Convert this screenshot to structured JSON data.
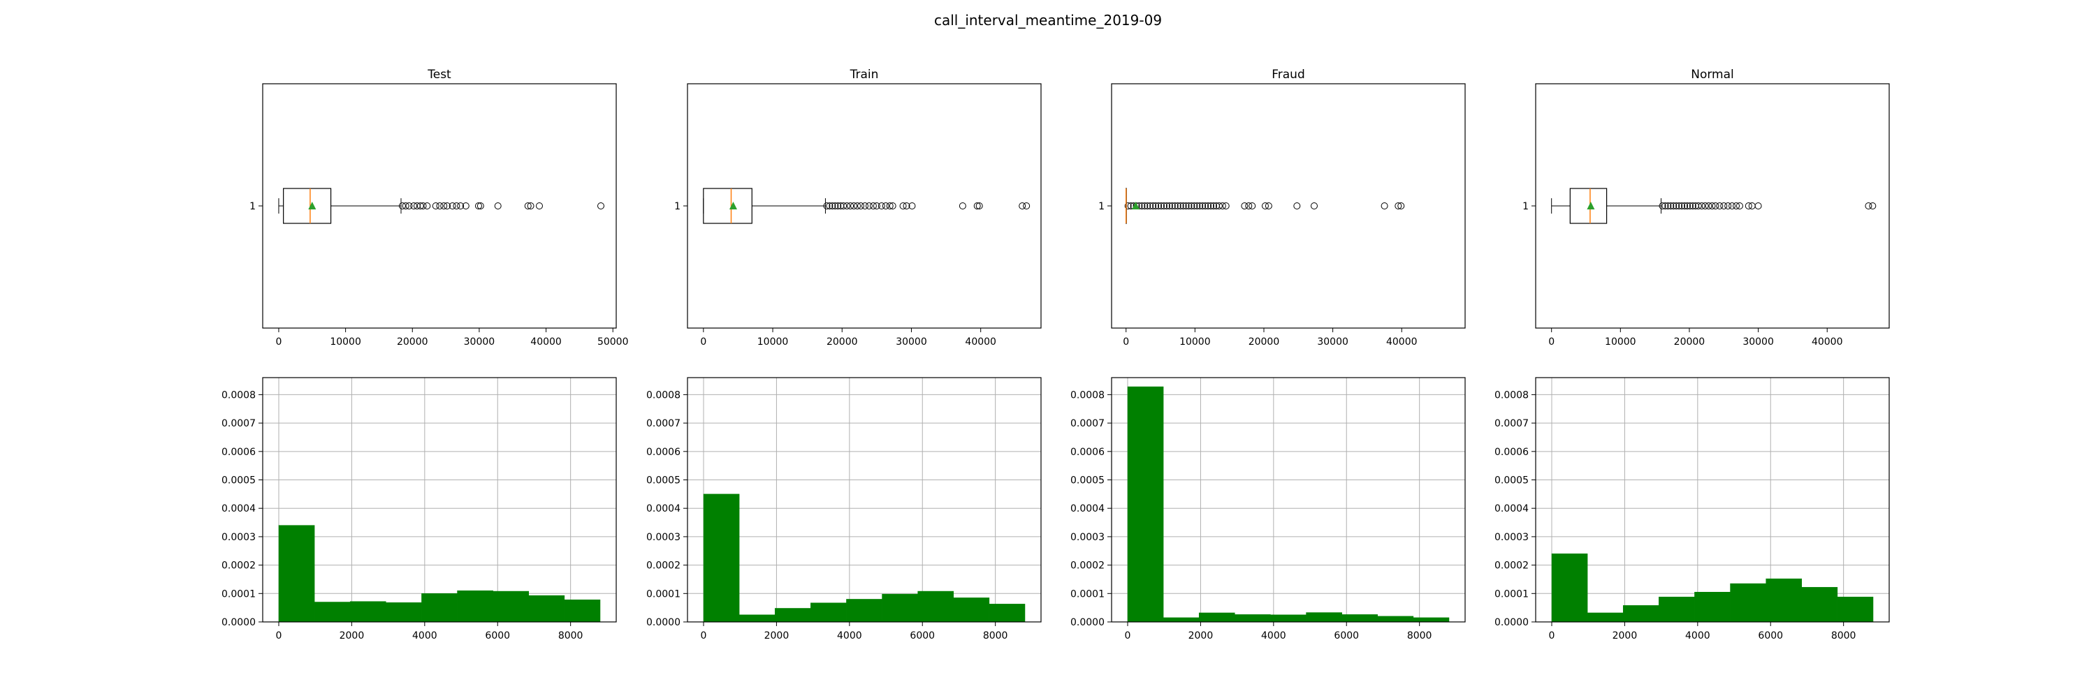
{
  "figure": {
    "title": "call_interval_meantime_2019-09"
  },
  "chart_data": [
    {
      "panel": "Test",
      "type": "boxplot",
      "title": "Test",
      "orientation": "horizontal",
      "y_tick_label": "1",
      "xlim": [
        -2400,
        50500
      ],
      "xticks": [
        0,
        10000,
        20000,
        30000,
        40000,
        50000
      ],
      "whisker_low": 0,
      "q1": 700,
      "median": 4700,
      "q3": 7800,
      "whisker_high": 18300,
      "mean": 5000,
      "outliers": [
        18500,
        19000,
        19500,
        20200,
        20700,
        21200,
        21600,
        22200,
        23500,
        24100,
        24700,
        25200,
        26000,
        26600,
        27200,
        28000,
        29900,
        30200,
        32800,
        37300,
        37700,
        39000,
        48200
      ]
    },
    {
      "panel": "Test",
      "type": "bar",
      "title": "",
      "bin_edges": [
        0,
        979,
        1958,
        2937,
        3916,
        4895,
        5874,
        6853,
        7832,
        8811
      ],
      "values": [
        0.00034,
        7e-05,
        7.2e-05,
        6.8e-05,
        0.0001,
        0.00011,
        0.000108,
        9.3e-05,
        7.8e-05
      ],
      "ylim": [
        0,
        0.00086
      ],
      "xticks": [
        0,
        2000,
        4000,
        6000,
        8000
      ],
      "yticks": [
        "0.0000",
        "0.0001",
        "0.0002",
        "0.0003",
        "0.0004",
        "0.0005",
        "0.0006",
        "0.0007",
        "0.0008"
      ],
      "grid": true,
      "color": "#008000"
    },
    {
      "panel": "Train",
      "type": "boxplot",
      "title": "Train",
      "orientation": "horizontal",
      "y_tick_label": "1",
      "xlim": [
        -2300,
        48700
      ],
      "xticks": [
        0,
        10000,
        20000,
        30000,
        40000
      ],
      "whisker_low": 0,
      "q1": 0,
      "median": 4000,
      "q3": 7000,
      "whisker_high": 17600,
      "mean": 4300,
      "outliers": [
        17800,
        18200,
        18600,
        19000,
        19400,
        19800,
        20200,
        20700,
        21200,
        21700,
        22200,
        22700,
        23300,
        23900,
        24500,
        25000,
        25700,
        26300,
        26900,
        27300,
        28800,
        29300,
        30100,
        37400,
        39500,
        39800,
        46000,
        46600
      ]
    },
    {
      "panel": "Train",
      "type": "bar",
      "title": "",
      "bin_edges": [
        0,
        979,
        1958,
        2937,
        3916,
        4895,
        5874,
        6853,
        7832,
        8811
      ],
      "values": [
        0.00045,
        2.5e-05,
        4.8e-05,
        6.7e-05,
        8e-05,
        9.8e-05,
        0.000108,
        8.5e-05,
        6.3e-05
      ],
      "ylim": [
        0,
        0.00086
      ],
      "xticks": [
        0,
        2000,
        4000,
        6000,
        8000
      ],
      "yticks": [
        "0.0000",
        "0.0001",
        "0.0002",
        "0.0003",
        "0.0004",
        "0.0005",
        "0.0006",
        "0.0007",
        "0.0008"
      ],
      "grid": true,
      "color": "#008000"
    },
    {
      "panel": "Fraud",
      "type": "boxplot",
      "title": "Fraud",
      "orientation": "horizontal",
      "y_tick_label": "1",
      "xlim": [
        -2100,
        49200
      ],
      "xticks": [
        0,
        10000,
        20000,
        30000,
        40000
      ],
      "whisker_low": 0,
      "q1": 0,
      "median": 0,
      "q3": 0,
      "whisker_high": 0,
      "mean": 1400,
      "outliers": [
        300,
        700,
        1100,
        1500,
        1900,
        2300,
        2700,
        3100,
        3500,
        3900,
        4300,
        4700,
        5100,
        5500,
        5900,
        6300,
        6700,
        7100,
        7500,
        7900,
        8300,
        8700,
        9100,
        9500,
        9900,
        10300,
        10700,
        11100,
        11500,
        11900,
        12300,
        12700,
        13100,
        13500,
        14000,
        14500,
        17200,
        17800,
        18300,
        20200,
        20700,
        24800,
        27300,
        37500,
        39500,
        39900
      ]
    },
    {
      "panel": "Fraud",
      "type": "bar",
      "title": "",
      "bin_edges": [
        0,
        979,
        1958,
        2937,
        3916,
        4895,
        5874,
        6853,
        7832,
        8811
      ],
      "values": [
        0.000828,
        1.5e-05,
        3.2e-05,
        2.6e-05,
        2.5e-05,
        3.3e-05,
        2.6e-05,
        2e-05,
        1.5e-05
      ],
      "ylim": [
        0,
        0.00086
      ],
      "xticks": [
        0,
        2000,
        4000,
        6000,
        8000
      ],
      "yticks": [
        "0.0000",
        "0.0001",
        "0.0002",
        "0.0003",
        "0.0004",
        "0.0005",
        "0.0006",
        "0.0007",
        "0.0008"
      ],
      "grid": true,
      "color": "#008000"
    },
    {
      "panel": "Normal",
      "type": "boxplot",
      "title": "Normal",
      "orientation": "horizontal",
      "y_tick_label": "1",
      "xlim": [
        -2300,
        49000
      ],
      "xticks": [
        0,
        10000,
        20000,
        30000,
        40000
      ],
      "whisker_low": 0,
      "q1": 2700,
      "median": 5600,
      "q3": 8000,
      "whisker_high": 15900,
      "mean": 5700,
      "outliers": [
        16100,
        16500,
        16900,
        17300,
        17700,
        18100,
        18500,
        18900,
        19300,
        19700,
        20100,
        20500,
        20900,
        21300,
        21800,
        22300,
        22800,
        23300,
        23800,
        24400,
        25000,
        25600,
        26200,
        26800,
        27300,
        28600,
        29100,
        30000,
        46000,
        46600
      ]
    },
    {
      "panel": "Normal",
      "type": "bar",
      "title": "",
      "bin_edges": [
        0,
        979,
        1958,
        2937,
        3916,
        4895,
        5874,
        6853,
        7832,
        8811
      ],
      "values": [
        0.00024,
        3.2e-05,
        5.8e-05,
        8.8e-05,
        0.000105,
        0.000135,
        0.000152,
        0.000122,
        8.8e-05
      ],
      "ylim": [
        0,
        0.00086
      ],
      "xticks": [
        0,
        2000,
        4000,
        6000,
        8000
      ],
      "yticks": [
        "0.0000",
        "0.0001",
        "0.0002",
        "0.0003",
        "0.0004",
        "0.0005",
        "0.0006",
        "0.0007",
        "0.0008"
      ],
      "grid": true,
      "color": "#008000"
    }
  ]
}
